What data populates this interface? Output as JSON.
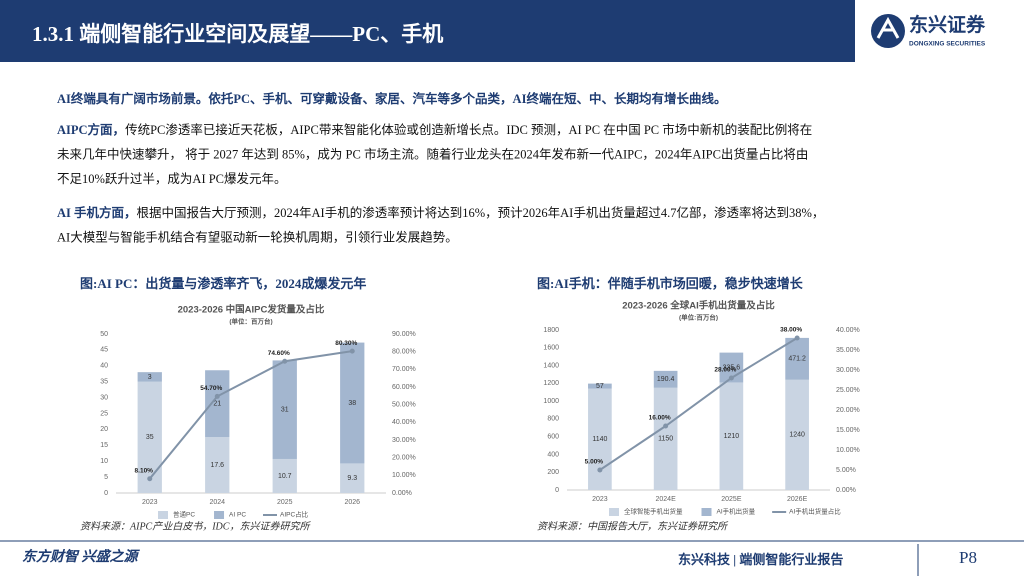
{
  "header": {
    "title": "1.3.1 端侧智能行业空间及展望——PC、手机",
    "logo": "东兴证券",
    "logo_sub": "DONGXING SECURITIES"
  },
  "paragraphs": [
    {
      "lead": "AI终端具有广阔市场前景。依托PC、手机、可穿戴设备、家居、汽车等多个品类，AI终端在短、中、长期均有增长曲线。"
    },
    {
      "lead": "AIPC方面，",
      "lines": [
        "传统PC渗透率已接近天花板，AIPC带来智能化体验或创造新增长点。IDC 预测，AI PC 在中国 PC 市场中新机的装配比例将在",
        "未来几年中快速攀升， 将于 2027 年达到 85%，成为 PC 市场主流。随着行业龙头在2024年发布新一代AIPC，2024年AIPC出货量占比将由",
        "不足10%跃升过半，成为AI PC爆发元年。"
      ]
    },
    {
      "lead": "AI 手机方面，",
      "lines": [
        "根据中国报告大厅预测，2024年AI手机的渗透率预计将达到16%，预计2026年AI手机出货量超过4.7亿部，渗透率将达到38%，",
        "AI大模型与智能手机结合有望驱动新一轮换机周期，引领行业发展趋势。"
      ]
    }
  ],
  "chart_data": [
    {
      "type": "stacked_bar_line",
      "caption": "图:AI PC：出货量与渗透率齐飞，2024成爆发元年",
      "title": "2023-2026 中国AIPC发货量及占比",
      "subtitle": "(单位：百万台)",
      "categories": [
        "2023",
        "2024",
        "2025",
        "2026"
      ],
      "series": [
        {
          "name": "普通PC",
          "color": "#c9d4e2",
          "values": [
            35,
            17.6,
            10.7,
            9.3
          ]
        },
        {
          "name": "AI PC",
          "color": "#a3b6cf",
          "values": [
            3,
            21,
            31,
            38
          ]
        },
        {
          "name": "AIPC占比",
          "color": "#8193a8",
          "axis": "y2",
          "values": [
            8.1,
            54.7,
            74.6,
            80.3
          ],
          "value_labels": [
            "8.10%",
            "54.70%",
            "74.60%",
            "80.30%"
          ]
        }
      ],
      "ylim": [
        0,
        50
      ],
      "yticks": [
        0,
        5,
        10,
        15,
        20,
        25,
        30,
        35,
        40,
        45,
        50
      ],
      "y2lim": [
        0,
        90
      ],
      "y2ticks": [
        {
          "value": 0,
          "label": "0.00%"
        },
        {
          "value": 10,
          "label": "10.00%"
        },
        {
          "value": 20,
          "label": "20.00%"
        },
        {
          "value": 30,
          "label": "30.00%"
        },
        {
          "value": 40,
          "label": "40.00%"
        },
        {
          "value": 50,
          "label": "50.00%"
        },
        {
          "value": 60,
          "label": "60.00%"
        },
        {
          "value": 70,
          "label": "70.00%"
        },
        {
          "value": 80,
          "label": "80.00%"
        },
        {
          "value": 90,
          "label": "90.00%"
        }
      ],
      "source": "资料来源：AIPC产业白皮书，IDC，东兴证券研究所"
    },
    {
      "type": "stacked_bar_line",
      "caption": "图:AI手机：伴随手机市场回暖，稳步快速增长",
      "title": "2023-2026 全球AI手机出货量及占比",
      "subtitle": "(单位:百万台)",
      "categories": [
        "2023",
        "2024E",
        "2025E",
        "2026E"
      ],
      "series": [
        {
          "name": "全球智能手机出货量",
          "color": "#c9d4e2",
          "values": [
            1140,
            1150,
            1210,
            1240
          ]
        },
        {
          "name": "AI手机出货量",
          "color": "#a3b6cf",
          "values": [
            57,
            190.4,
            335.6,
            471.2
          ]
        },
        {
          "name": "AI手机出货量占比",
          "color": "#8193a8",
          "axis": "y2",
          "values": [
            5,
            16,
            28,
            38
          ],
          "value_labels": [
            "5.00%",
            "16.00%",
            "28.00%",
            "38.00%"
          ]
        }
      ],
      "ylim": [
        0,
        1800
      ],
      "yticks": [
        0,
        200,
        400,
        600,
        800,
        1000,
        1200,
        1400,
        1600,
        1800
      ],
      "y2lim": [
        0,
        40
      ],
      "y2ticks": [
        {
          "value": 0,
          "label": "0.00%"
        },
        {
          "value": 5,
          "label": "5.00%"
        },
        {
          "value": 10,
          "label": "10.00%"
        },
        {
          "value": 15,
          "label": "15.00%"
        },
        {
          "value": 20,
          "label": "20.00%"
        },
        {
          "value": 25,
          "label": "25.00%"
        },
        {
          "value": 30,
          "label": "30.00%"
        },
        {
          "value": 35,
          "label": "35.00%"
        },
        {
          "value": 40,
          "label": "40.00%"
        }
      ],
      "source": "资料来源：中国报告大厅，东兴证券研究所"
    }
  ],
  "footer": {
    "slogan": "东方财智 兴盛之源",
    "report": "东兴科技 | 端侧智能行业报告",
    "page": "P8"
  }
}
